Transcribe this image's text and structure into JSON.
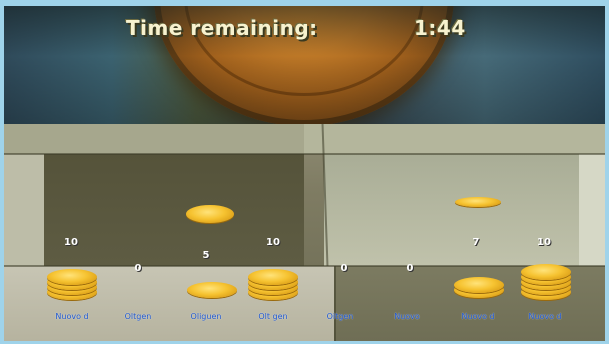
{
  "hud": {
    "timer_label": "Time remaining:",
    "timer_value": "1:44"
  },
  "players": [
    {
      "count": "10",
      "name": "Nuovo d"
    },
    {
      "count": "0",
      "name": "Oltgen"
    },
    {
      "count": "5",
      "name": "Oliguen"
    },
    {
      "count": "10",
      "name": "Olt gen"
    },
    {
      "count": "0",
      "name": "Oitgen"
    },
    {
      "count": "0",
      "name": "Nuovo"
    },
    {
      "count": "7",
      "name": "Nuovo d"
    },
    {
      "count": "10",
      "name": "Nuovo d"
    }
  ],
  "colors": {
    "coin": "#f6c331",
    "name_text": "#1f55c8",
    "timer_text": "#f7f2cf"
  }
}
